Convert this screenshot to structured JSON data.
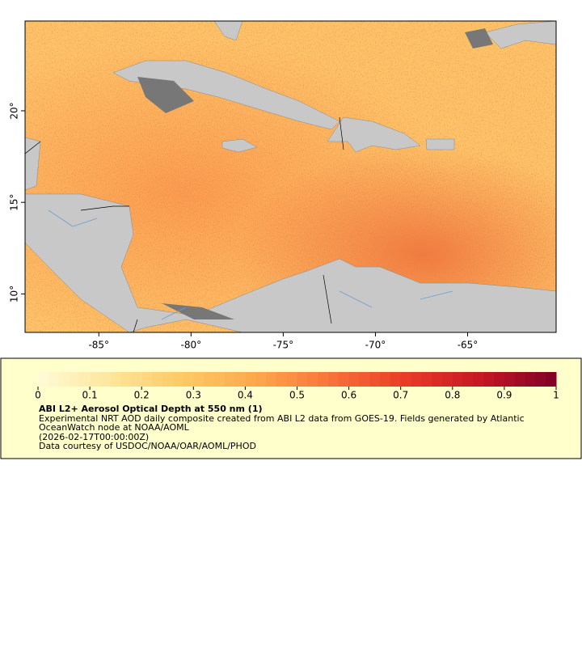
{
  "map": {
    "xlim": [
      -89,
      -60.2
    ],
    "ylim": [
      7.9,
      24.9
    ],
    "xticks": [
      {
        "value": -85,
        "label": "-85°"
      },
      {
        "value": -80,
        "label": "-80°"
      },
      {
        "value": -75,
        "label": "-75°"
      },
      {
        "value": -70,
        "label": "-70°"
      },
      {
        "value": -65,
        "label": "-65°"
      }
    ],
    "yticks": [
      {
        "value": 10,
        "label": "10°"
      },
      {
        "value": 15,
        "label": "15°"
      },
      {
        "value": 20,
        "label": "20°"
      }
    ]
  },
  "colorbar": {
    "lim": [
      0,
      1
    ],
    "ticks": [
      0,
      0.1,
      0.2,
      0.3,
      0.4,
      0.5,
      0.6,
      0.7,
      0.8,
      0.9,
      1
    ],
    "colors": [
      "#fffbd8",
      "#fee59a",
      "#fec863",
      "#fda64a",
      "#f8703a",
      "#e73a26",
      "#c51624",
      "#800026"
    ]
  },
  "legend": {
    "title": "ABI L2+ Aerosol Optical Depth at 550 nm (1)",
    "lines": [
      "Experimental NRT AOD daily composite created from ABI L2 data from GOES-19. Fields generated by Atlantic OceanWatch node at NOAA/AOML",
      "(2026-02-17T00:00:00Z)",
      "Data courtesy of USDOC/NOAA/OAR/AOML/PHOD"
    ]
  }
}
